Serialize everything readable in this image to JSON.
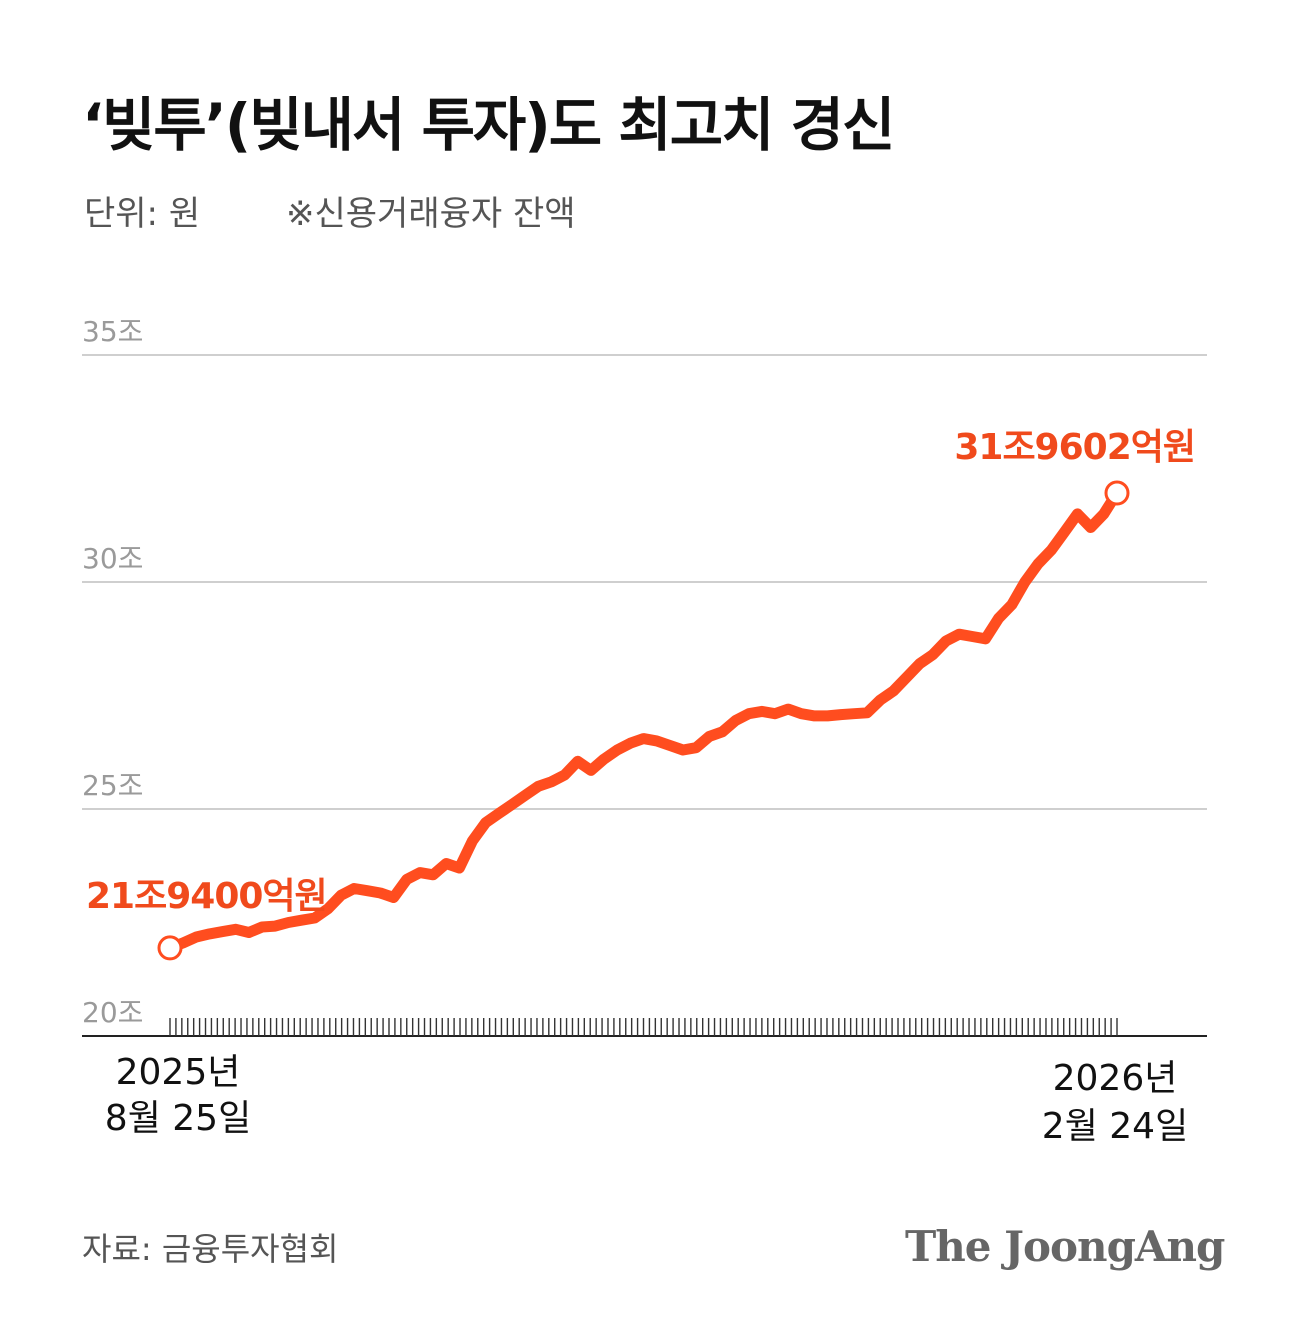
{
  "header": {
    "title": "‘빚투’(빚내서 투자)도 최고치 경신",
    "unit": "단위: 원",
    "note": "※신용거래융자 잔액"
  },
  "footer": {
    "source": "자료: 금융투자협회",
    "brand": "The JoongAng"
  },
  "colors": {
    "line": "#ff4d1f",
    "annotation": "#f04a1c",
    "grid": "#cfcfcf",
    "tick_label": "#9a9a9a",
    "axis": "#222222"
  },
  "chart_data": {
    "type": "line",
    "title": "‘빚투’(빚내서 투자)도 최고치 경신",
    "ylabel": "",
    "xlabel": "",
    "ylim": [
      20,
      35
    ],
    "yticks": [
      20,
      25,
      30,
      35
    ],
    "ytick_labels": [
      "20조",
      "25조",
      "30조",
      "35조"
    ],
    "grid": true,
    "x_labels": [
      {
        "year": "2025년",
        "date": "8월 25일"
      },
      {
        "year": "2026년",
        "date": "2월 24일"
      }
    ],
    "annotations": [
      {
        "text": "21조9400억원",
        "point": "start"
      },
      {
        "text": "31조9602억원",
        "point": "end"
      }
    ],
    "series": [
      {
        "values": [
          21.94,
          22.05,
          22.18,
          22.25,
          22.3,
          22.35,
          22.28,
          22.4,
          22.42,
          22.5,
          22.55,
          22.6,
          22.8,
          23.1,
          23.25,
          23.2,
          23.15,
          23.05,
          23.45,
          23.6,
          23.55,
          23.8,
          23.7,
          24.3,
          24.7,
          24.9,
          25.1,
          25.3,
          25.5,
          25.6,
          25.75,
          26.05,
          25.85,
          26.1,
          26.3,
          26.45,
          26.55,
          26.5,
          26.4,
          26.3,
          26.35,
          26.6,
          26.7,
          26.95,
          27.1,
          27.15,
          27.1,
          27.2,
          27.1,
          27.05,
          27.05,
          27.08,
          27.1,
          27.12,
          27.4,
          27.6,
          27.9,
          28.2,
          28.4,
          28.7,
          28.85,
          28.8,
          28.75,
          29.2,
          29.5,
          30.0,
          30.4,
          30.7,
          31.1,
          31.5,
          31.2,
          31.5,
          31.96
        ]
      }
    ]
  }
}
